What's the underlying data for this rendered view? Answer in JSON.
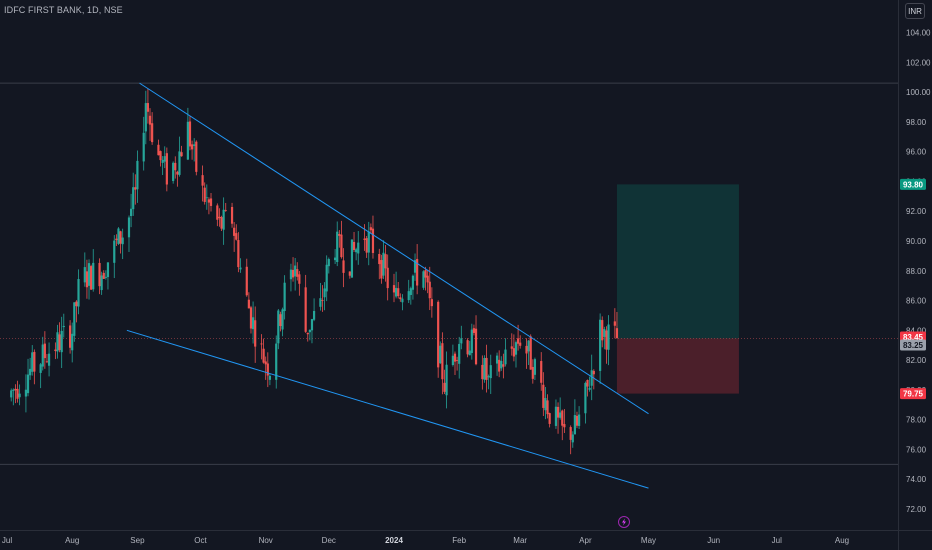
{
  "header": {
    "ticker_label": "IDFC FIRST BANK, 1D, NSE",
    "currency_button": "INR"
  },
  "price_badges": {
    "target": {
      "label": "93.80",
      "value": 93.8,
      "color": "#089981"
    },
    "current": {
      "label": "83.45",
      "value": 83.45,
      "color": "#f23645"
    },
    "prev_close": {
      "label": "83.25",
      "value": 83.25,
      "color": "#9aa0ab"
    },
    "stop": {
      "label": "79.75",
      "value": 79.75,
      "color": "#f23645"
    }
  },
  "events_icon": "lightning-icon",
  "colors": {
    "background": "#131722",
    "up_candle": "#26a69a",
    "down_candle": "#ef5350",
    "trendline": "#2196f3",
    "target_zone": "rgba(8,153,129,0.22)",
    "stop_zone": "rgba(242,54,69,0.25)"
  },
  "chart_data": {
    "type": "candlestick",
    "title": "IDFC FIRST BANK, 1D, NSE",
    "currency": "INR",
    "y_ticks": [
      "72.00",
      "74.00",
      "76.00",
      "78.00",
      "80.00",
      "82.00",
      "84.00",
      "86.00",
      "88.00",
      "90.00",
      "92.00",
      "94.00",
      "96.00",
      "98.00",
      "100.00",
      "102.00",
      "104.00"
    ],
    "x_ticks": [
      "Jul",
      "Aug",
      "Sep",
      "Oct",
      "Nov",
      "Dec",
      "2024",
      "Feb",
      "Mar",
      "Apr",
      "May",
      "Jun",
      "Jul",
      "Aug"
    ],
    "ylim": [
      71.0,
      105.5
    ],
    "price_path": [
      [
        "2023-07-01",
        79.5
      ],
      [
        "2023-07-10",
        81.0
      ],
      [
        "2023-07-20",
        82.5
      ],
      [
        "2023-08-01",
        84.0
      ],
      [
        "2023-08-05",
        87.5
      ],
      [
        "2023-08-15",
        88.0
      ],
      [
        "2023-08-25",
        90.5
      ],
      [
        "2023-08-31",
        93.0
      ],
      [
        "2023-09-05",
        99.5
      ],
      [
        "2023-09-10",
        96.0
      ],
      [
        "2023-09-15",
        94.5
      ],
      [
        "2023-09-20",
        95.5
      ],
      [
        "2023-09-25",
        97.5
      ],
      [
        "2023-10-01",
        93.5
      ],
      [
        "2023-10-10",
        91.0
      ],
      [
        "2023-10-16",
        91.5
      ],
      [
        "2023-10-22",
        86.5
      ],
      [
        "2023-10-30",
        82.5
      ],
      [
        "2023-11-03",
        81.5
      ],
      [
        "2023-11-10",
        86.5
      ],
      [
        "2023-11-15",
        88.5
      ],
      [
        "2023-11-20",
        84.0
      ],
      [
        "2023-11-27",
        85.5
      ],
      [
        "2023-12-03",
        90.0
      ],
      [
        "2023-12-10",
        88.5
      ],
      [
        "2023-12-18",
        90.5
      ],
      [
        "2023-12-25",
        89.0
      ],
      [
        "2024-01-01",
        86.0
      ],
      [
        "2024-01-08",
        87.5
      ],
      [
        "2024-01-15",
        88.0
      ],
      [
        "2024-01-20",
        84.0
      ],
      [
        "2024-01-25",
        80.5
      ],
      [
        "2024-02-01",
        83.5
      ],
      [
        "2024-02-08",
        83.0
      ],
      [
        "2024-02-15",
        80.5
      ],
      [
        "2024-02-22",
        82.0
      ],
      [
        "2024-03-01",
        83.5
      ],
      [
        "2024-03-08",
        81.5
      ],
      [
        "2024-03-15",
        78.5
      ],
      [
        "2024-03-22",
        77.0
      ],
      [
        "2024-03-28",
        77.5
      ],
      [
        "2024-04-02",
        80.0
      ],
      [
        "2024-04-08",
        84.0
      ],
      [
        "2024-04-15",
        83.45
      ]
    ],
    "trendlines": [
      {
        "from": [
          "2023-09-02",
          100.6
        ],
        "to": [
          "2024-05-01",
          78.4
        ]
      },
      {
        "from": [
          "2023-08-27",
          84.0
        ],
        "to": [
          "2024-05-01",
          73.4
        ]
      }
    ],
    "horizontal_lines": [
      100.6,
      75.0
    ],
    "position": {
      "type": "long",
      "entry": 83.45,
      "target": 93.8,
      "stop": 79.75,
      "start_date": "2024-04-16",
      "end_date": "2024-06-13"
    }
  }
}
